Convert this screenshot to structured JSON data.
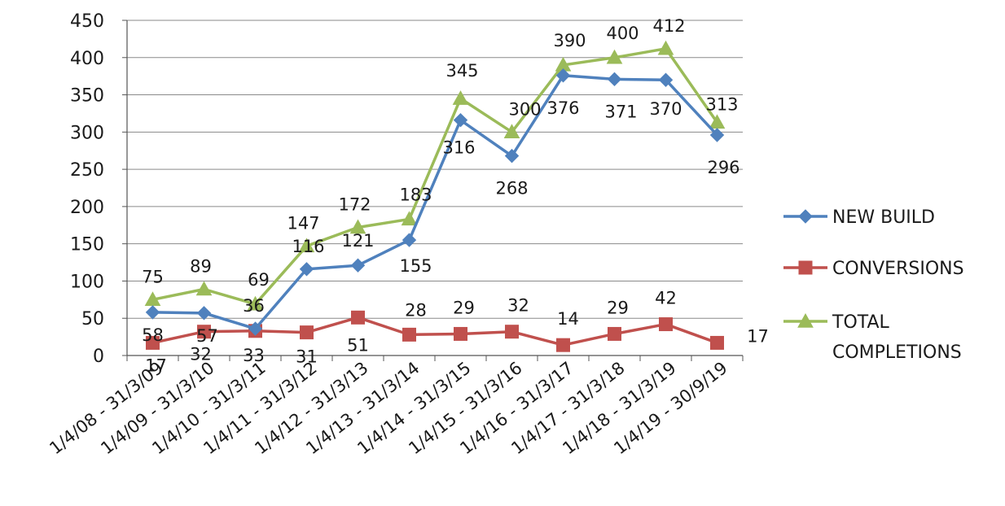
{
  "chart_data": {
    "type": "line",
    "categories": [
      "1/4/08 - 31/3/09",
      "1/4/09 - 31/3/10",
      "1/4/10 - 31/3/11",
      "1/4/11 - 31/3/12",
      "1/4/12 - 31/3/13",
      "1/4/13 - 31/3/14",
      "1/4/14 - 31/3/15",
      "1/4/15 - 31/3/16",
      "1/4/16 - 31/3/17",
      "1/4/17 - 31/3/18",
      "1/4/18 - 31/3/19",
      "1/4/19 - 30/9/19"
    ],
    "ylim": [
      0,
      450
    ],
    "yticks": [
      0,
      50,
      100,
      150,
      200,
      250,
      300,
      350,
      400,
      450
    ],
    "grid": true,
    "legend_position": "right",
    "series": [
      {
        "name": "NEW BUILD",
        "color": "#4f81bd",
        "marker": "diamond",
        "values": [
          58,
          57,
          36,
          116,
          121,
          155,
          316,
          268,
          376,
          371,
          370,
          296
        ]
      },
      {
        "name": "CONVERSIONS",
        "color": "#c0504d",
        "marker": "square",
        "values": [
          17,
          32,
          33,
          31,
          51,
          28,
          29,
          32,
          14,
          29,
          42,
          17
        ]
      },
      {
        "name": "TOTAL COMPLETIONS",
        "legend_lines": [
          "TOTAL",
          "COMPLETIONS"
        ],
        "color": "#9bbb59",
        "marker": "triangle",
        "values": [
          75,
          89,
          69,
          147,
          172,
          183,
          345,
          300,
          390,
          400,
          412,
          313
        ]
      }
    ]
  }
}
